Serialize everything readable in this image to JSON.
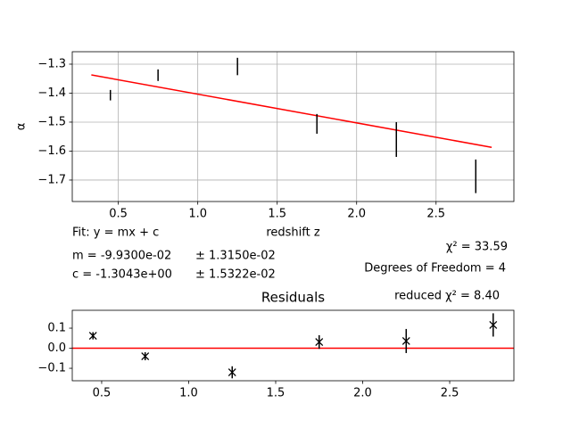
{
  "chart_data": [
    {
      "type": "errorbar",
      "xlabel": "redshift z",
      "ylabel": "α",
      "x": [
        0.45,
        0.75,
        1.25,
        1.75,
        2.25,
        2.75
      ],
      "values": [
        -1.407,
        -1.338,
        -1.308,
        -1.506,
        -1.56,
        -1.687
      ],
      "errors": [
        0.018,
        0.02,
        0.03,
        0.034,
        0.06,
        0.058
      ],
      "color": "#000000",
      "fit": {
        "x": [
          0.33,
          2.85
        ],
        "values": [
          -1.337,
          -1.587
        ],
        "color": "#ff0000"
      },
      "xlim": [
        0.21,
        2.99
      ],
      "ylim": [
        -1.774,
        -1.257
      ],
      "xticks": [
        0.5,
        {
          "value": 1,
          "label": "1.0"
        },
        1.5,
        {
          "value": 2,
          "label": "2.0"
        },
        2.5
      ],
      "yticks": [
        {
          "value": -1.3,
          "label": "−1.3"
        },
        {
          "value": -1.4,
          "label": "−1.4"
        },
        {
          "value": -1.5,
          "label": "−1.5"
        },
        {
          "value": -1.6,
          "label": "−1.6"
        },
        {
          "value": -1.7,
          "label": "−1.7"
        }
      ],
      "grid": true,
      "annotations": [
        "Fit: y = mx + c",
        "m = -9.9300e-02",
        "± 1.3150e-02",
        "c = -1.3043e+00",
        "± 1.5322e-02",
        "χ² = 33.59",
        "Degrees of Freedom = 4",
        "reduced χ² = 8.40"
      ]
    },
    {
      "type": "errorbar",
      "title": "Residuals",
      "marker": "x",
      "x": [
        0.45,
        0.75,
        1.25,
        1.75,
        2.25,
        2.75
      ],
      "values": [
        0.062,
        -0.04,
        -0.12,
        0.031,
        0.036,
        0.116
      ],
      "errors": [
        0.018,
        0.02,
        0.03,
        0.034,
        0.06,
        0.058
      ],
      "color": "#000000",
      "hline": 0,
      "hline_color": "#ff0000",
      "xlim": [
        0.331,
        2.869
      ],
      "ylim": [
        -0.162,
        0.189
      ],
      "xticks": [
        0.5,
        {
          "value": 1,
          "label": "1.0"
        },
        1.5,
        {
          "value": 2,
          "label": "2.0"
        },
        2.5
      ],
      "yticks": [
        0.1,
        {
          "value": 0,
          "label": "0.0"
        },
        {
          "value": -0.1,
          "label": "−0.1"
        }
      ],
      "grid": false
    }
  ]
}
